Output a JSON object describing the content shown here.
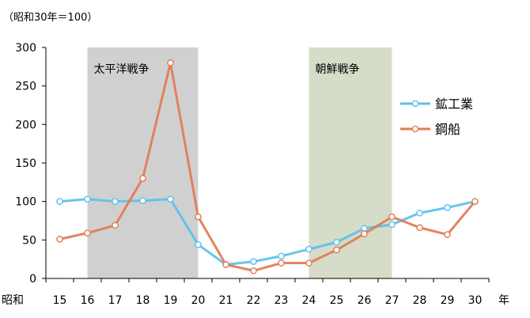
{
  "chart_data": {
    "type": "line",
    "unit_note": "（昭和30年＝100）",
    "x_prefix": "昭和",
    "x_suffix": "年",
    "x": [
      15,
      16,
      17,
      18,
      19,
      20,
      21,
      22,
      23,
      24,
      25,
      26,
      27,
      28,
      29,
      30
    ],
    "ylim": [
      0,
      300
    ],
    "yticks": [
      0,
      50,
      100,
      150,
      200,
      250,
      300
    ],
    "grid": false,
    "legend_position": "right",
    "series": [
      {
        "name": "鉱工業",
        "color": "#5bc0eb",
        "values": [
          100,
          103,
          100,
          101,
          103,
          44,
          18,
          22,
          29,
          38,
          47,
          65,
          70,
          85,
          92,
          100
        ]
      },
      {
        "name": "鋼船",
        "color": "#e07b54",
        "values": [
          51,
          59,
          69,
          130,
          280,
          80,
          18,
          10,
          20,
          20,
          37,
          58,
          80,
          66,
          57,
          100
        ]
      }
    ],
    "bands": [
      {
        "label": "太平洋戦争",
        "from": 16,
        "to": 20,
        "color": "#d0d0d0"
      },
      {
        "label": "朝鮮戦争",
        "from": 24,
        "to": 27,
        "color": "#d5dcc8"
      }
    ]
  }
}
